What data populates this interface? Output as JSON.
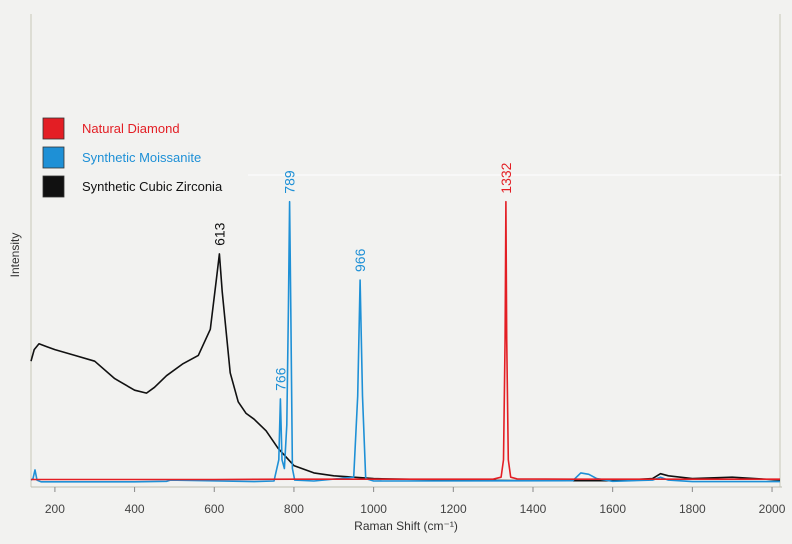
{
  "chart_data": {
    "type": "line",
    "xlabel": "Raman Shift (cm⁻¹)",
    "ylabel": "Intensity",
    "xlim": [
      140,
      2020
    ],
    "ylim": [
      0,
      100
    ],
    "x_ticks": [
      "200",
      "400",
      "600",
      "800",
      "1000",
      "1200",
      "1400",
      "1600",
      "1800",
      "2000"
    ],
    "x_tick_values": [
      200,
      400,
      600,
      800,
      1000,
      1200,
      1400,
      1600,
      1800,
      2000
    ],
    "grid": false,
    "legend_position": "top-left",
    "series": [
      {
        "name": "Natural Diamond",
        "color": "#e31e24",
        "x": [
          140,
          400,
          600,
          800,
          1000,
          1200,
          1300,
          1320,
          1326,
          1330,
          1332,
          1334,
          1338,
          1344,
          1360,
          1500,
          1800,
          2020
        ],
        "y": [
          1.2,
          1.2,
          1.2,
          1.3,
          1.3,
          1.3,
          1.3,
          2,
          8,
          50,
          97,
          50,
          8,
          2,
          1.4,
          1.3,
          1.3,
          1.3
        ]
      },
      {
        "name": "Synthetic Moissanite",
        "color": "#1e90d6",
        "x": [
          140,
          145,
          150,
          155,
          165,
          400,
          480,
          490,
          700,
          750,
          762,
          766,
          770,
          776,
          782,
          786,
          789,
          792,
          796,
          802,
          850,
          950,
          960,
          966,
          972,
          980,
          1000,
          1500,
          1520,
          1540,
          1560,
          1600,
          1700,
          1720,
          1740,
          1800,
          2020
        ],
        "y": [
          1,
          1.5,
          4.5,
          1,
          0.4,
          0.4,
          0.6,
          1,
          0.5,
          0.7,
          8,
          29,
          8,
          5,
          20,
          60,
          97,
          60,
          5,
          1,
          0.7,
          2,
          30,
          70,
          30,
          1.5,
          0.7,
          0.8,
          3.5,
          3,
          1.5,
          0.6,
          1,
          2,
          1,
          0.5,
          0.5
        ]
      },
      {
        "name": "Synthetic Cubic Zirconia",
        "color": "#111111",
        "x": [
          140,
          148,
          160,
          180,
          200,
          250,
          300,
          350,
          400,
          430,
          450,
          480,
          520,
          560,
          590,
          605,
          613,
          620,
          640,
          660,
          680,
          700,
          730,
          760,
          800,
          850,
          900,
          1000,
          1200,
          1400,
          1600,
          1700,
          1720,
          1740,
          1800,
          1900,
          2020
        ],
        "y": [
          42,
          46,
          48,
          47,
          46,
          44,
          42,
          36,
          32,
          31,
          33,
          37,
          41,
          44,
          53,
          70,
          79,
          66,
          38,
          28,
          24,
          22,
          18,
          12,
          6,
          3.5,
          2.5,
          1.5,
          1,
          0.8,
          0.8,
          1.5,
          3.2,
          2.5,
          1.5,
          2,
          1
        ]
      }
    ],
    "annotations": [
      {
        "text": "613",
        "x": 613,
        "color": "#111111"
      },
      {
        "text": "766",
        "x": 766,
        "color": "#1e90d6"
      },
      {
        "text": "789",
        "x": 789,
        "color": "#1e90d6"
      },
      {
        "text": "966",
        "x": 966,
        "color": "#1e90d6"
      },
      {
        "text": "1332",
        "x": 1332,
        "color": "#e31e24"
      }
    ]
  }
}
